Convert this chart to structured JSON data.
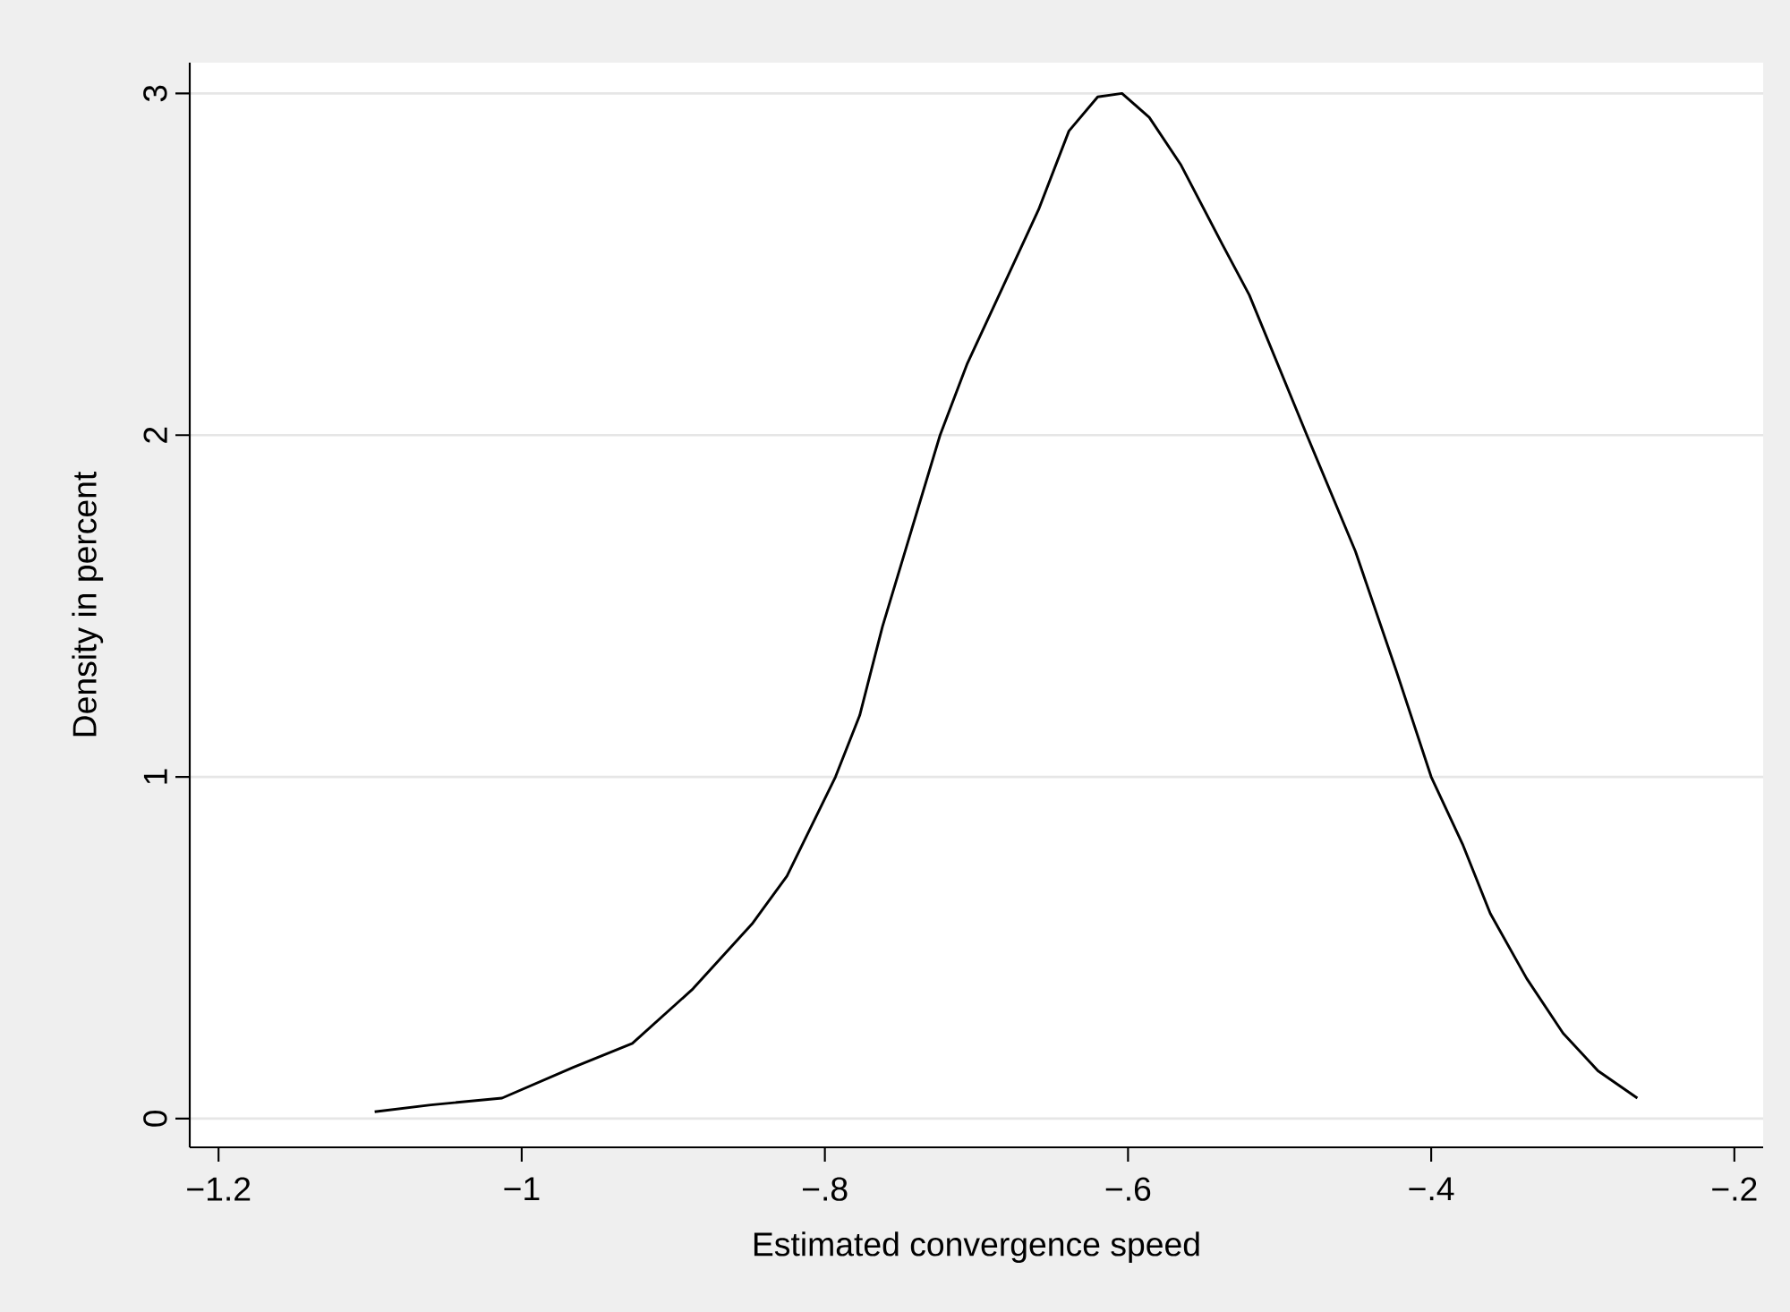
{
  "chart_data": {
    "type": "line",
    "xlabel": "Estimated convergence speed",
    "ylabel": "Density in percent",
    "xlim": [
      -1.219,
      -0.181
    ],
    "ylim": [
      -0.084,
      3.09
    ],
    "xticks": [
      {
        "value": -1.2,
        "label": "−1.2"
      },
      {
        "value": -1,
        "label": "−1"
      },
      {
        "value": -0.8,
        "label": "−.8"
      },
      {
        "value": -0.6,
        "label": "−.6"
      },
      {
        "value": -0.4,
        "label": "−.4"
      },
      {
        "value": -0.2,
        "label": "−.2"
      }
    ],
    "yticks": [
      0,
      1,
      2,
      3
    ],
    "grid": "y",
    "line_style": "solid",
    "x": [
      -1.097,
      -1.06,
      -1.013,
      -0.966,
      -0.927,
      -0.887,
      -0.848,
      -0.825,
      -0.793,
      -0.777,
      -0.762,
      -0.724,
      -0.706,
      -0.683,
      -0.659,
      -0.639,
      -0.62,
      -0.604,
      -0.586,
      -0.565,
      -0.538,
      -0.52,
      -0.482,
      -0.45,
      -0.423,
      -0.4,
      -0.379,
      -0.361,
      -0.337,
      -0.313,
      -0.29,
      -0.264
    ],
    "series": [
      {
        "color": "#000000",
        "values": [
          0.02,
          0.04,
          0.06,
          0.15,
          0.22,
          0.38,
          0.57,
          0.71,
          1.0,
          1.18,
          1.44,
          2.0,
          2.21,
          2.43,
          2.66,
          2.89,
          2.99,
          3.0,
          2.93,
          2.79,
          2.56,
          2.41,
          2.0,
          1.66,
          1.31,
          1.0,
          0.8,
          0.6,
          0.41,
          0.25,
          0.14,
          0.06
        ]
      }
    ]
  }
}
